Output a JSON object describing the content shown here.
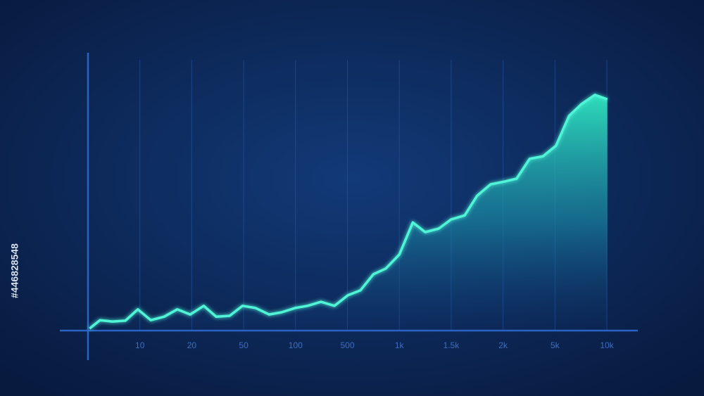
{
  "chart_data": {
    "type": "area",
    "side_label": "#446828548",
    "x": [
      0.03,
      0.23,
      0.47,
      0.72,
      0.96,
      1.21,
      1.47,
      1.72,
      1.97,
      2.23,
      2.47,
      2.73,
      2.98,
      3.23,
      3.49,
      3.73,
      3.99,
      4.23,
      4.49,
      4.75,
      5.01,
      5.25,
      5.5,
      5.74,
      6.0,
      6.26,
      6.5,
      6.76,
      7.0,
      7.26,
      7.5,
      7.76,
      8.02,
      8.26,
      8.51,
      8.77,
      9.02,
      9.27,
      9.51,
      9.77,
      10.01
    ],
    "series": [
      {
        "color": "#4ff5d6",
        "values": [
          0.5,
          3.6,
          3.1,
          3.4,
          7.6,
          3.6,
          4.9,
          7.6,
          5.7,
          8.9,
          4.9,
          5.2,
          8.9,
          8.1,
          5.7,
          6.5,
          8.1,
          8.9,
          10.4,
          8.9,
          12.8,
          14.6,
          20.6,
          22.7,
          27.9,
          39.8,
          36.2,
          37.5,
          40.9,
          42.4,
          49.7,
          53.9,
          54.9,
          56.0,
          63.3,
          64.3,
          68.2,
          79.2,
          83.6,
          87.0,
          85.4
        ]
      }
    ],
    "xlim": [
      0,
      10
    ],
    "ylim": [
      0,
      100
    ],
    "xticks": [
      {
        "value": 1,
        "label": "10"
      },
      {
        "value": 2,
        "label": "20"
      },
      {
        "value": 3,
        "label": "50"
      },
      {
        "value": 4,
        "label": "100"
      },
      {
        "value": 5,
        "label": "500"
      },
      {
        "value": 6,
        "label": "1k"
      },
      {
        "value": 7,
        "label": "1.5k"
      },
      {
        "value": 8,
        "label": "2k"
      },
      {
        "value": 9,
        "label": "5k"
      },
      {
        "value": 10,
        "label": "10k"
      }
    ],
    "grid": true
  }
}
